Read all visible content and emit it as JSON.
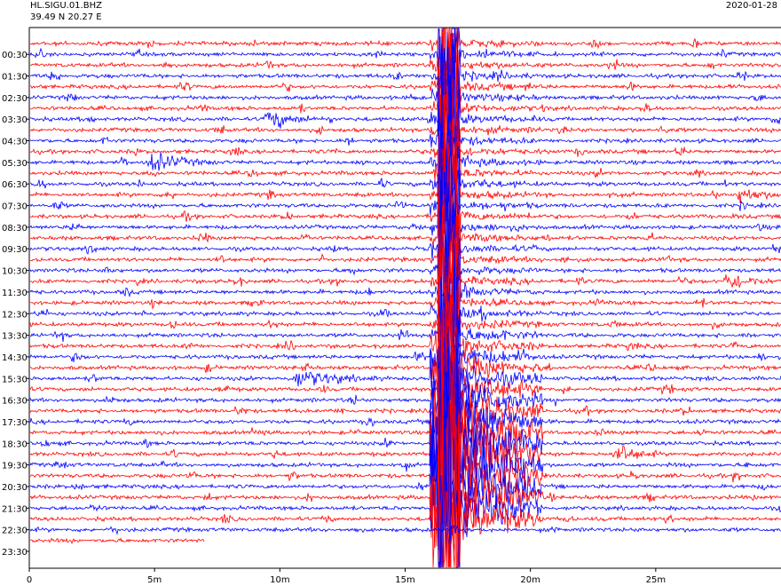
{
  "header": {
    "station": "HL.SIGU.01.BHZ",
    "coords": "39.49 N 20.27 E",
    "date": "2020-01-28"
  },
  "chart_data": {
    "type": "line",
    "title": "",
    "xlabel": "",
    "ylabel": "",
    "xlim": [
      0,
      30
    ],
    "x_ticks": [
      {
        "value": 0,
        "label": "0"
      },
      {
        "value": 5,
        "label": "5m"
      },
      {
        "value": 10,
        "label": "10m"
      },
      {
        "value": 15,
        "label": "15m"
      },
      {
        "value": 20,
        "label": "20m"
      },
      {
        "value": 25,
        "label": "25m"
      }
    ],
    "hour_labels": [
      "00:30",
      "01:30",
      "02:30",
      "03:30",
      "04:30",
      "05:30",
      "06:30",
      "07:30",
      "08:30",
      "09:30",
      "10:30",
      "11:30",
      "12:30",
      "13:30",
      "14:30",
      "15:30",
      "16:30",
      "17:30",
      "18:30",
      "19:30",
      "20:30",
      "21:30",
      "22:30",
      "23:30"
    ],
    "trace_colors": [
      "#ff0000",
      "#0000ff"
    ],
    "traces_per_hour": 2,
    "last_trace_end_minute": 7,
    "events": [
      {
        "start_minute": 16.0,
        "end_minute": 20.5,
        "first_trace": 0,
        "last_trace": 44,
        "peak_trace": 39,
        "description_free": true
      },
      {
        "start_minute": 4.6,
        "end_minute": 7.5,
        "trace": 11
      },
      {
        "start_minute": 10.4,
        "end_minute": 14.0,
        "trace": 31
      },
      {
        "start_minute": 9.3,
        "end_minute": 11.8,
        "trace": 7
      },
      {
        "start_minute": 28.2,
        "end_minute": 30.0,
        "trace": 14
      },
      {
        "start_minute": 27.6,
        "end_minute": 30.0,
        "trace": 22
      },
      {
        "start_minute": 23.4,
        "end_minute": 25.2,
        "trace": 38
      }
    ]
  }
}
